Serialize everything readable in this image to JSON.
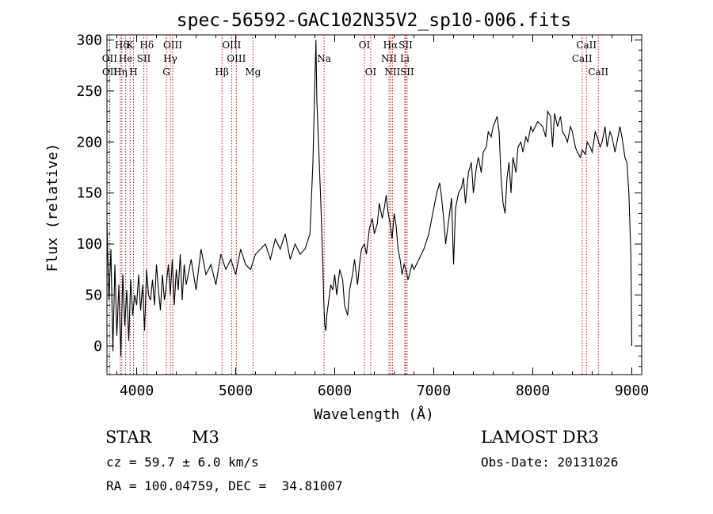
{
  "chart_data": {
    "type": "line",
    "title": "spec-56592-GAC102N35V2_sp10-006.fits",
    "xlabel": "Wavelength (Å)",
    "ylabel": "Flux (relative)",
    "xlim": [
      3700,
      9100
    ],
    "ylim": [
      -28,
      305
    ],
    "xticks": [
      4000,
      5000,
      6000,
      7000,
      8000,
      9000
    ],
    "yticks": [
      0,
      50,
      100,
      150,
      200,
      250,
      300
    ],
    "series": [
      {
        "name": "flux",
        "x": [
          3700,
          3720,
          3740,
          3760,
          3780,
          3800,
          3820,
          3840,
          3860,
          3880,
          3900,
          3920,
          3940,
          3960,
          3980,
          4000,
          4020,
          4040,
          4060,
          4080,
          4100,
          4120,
          4140,
          4160,
          4180,
          4200,
          4220,
          4240,
          4260,
          4280,
          4300,
          4320,
          4340,
          4360,
          4380,
          4400,
          4420,
          4440,
          4460,
          4480,
          4500,
          4550,
          4600,
          4650,
          4700,
          4750,
          4800,
          4850,
          4900,
          4950,
          5000,
          5050,
          5100,
          5150,
          5200,
          5250,
          5300,
          5350,
          5400,
          5450,
          5500,
          5550,
          5600,
          5650,
          5700,
          5750,
          5780,
          5800,
          5810,
          5820,
          5840,
          5860,
          5880,
          5890,
          5900,
          5910,
          5920,
          5940,
          5960,
          5980,
          6000,
          6020,
          6050,
          6080,
          6100,
          6130,
          6150,
          6180,
          6200,
          6230,
          6250,
          6270,
          6300,
          6320,
          6350,
          6380,
          6400,
          6430,
          6450,
          6480,
          6500,
          6520,
          6540,
          6560,
          6580,
          6600,
          6620,
          6640,
          6660,
          6680,
          6700,
          6720,
          6740,
          6760,
          6780,
          6800,
          6850,
          6900,
          6950,
          7000,
          7030,
          7060,
          7080,
          7100,
          7120,
          7140,
          7160,
          7180,
          7200,
          7220,
          7250,
          7280,
          7300,
          7320,
          7350,
          7380,
          7400,
          7430,
          7450,
          7480,
          7500,
          7530,
          7550,
          7580,
          7600,
          7620,
          7640,
          7660,
          7680,
          7700,
          7720,
          7740,
          7760,
          7780,
          7800,
          7830,
          7850,
          7880,
          7900,
          7930,
          7950,
          7980,
          8000,
          8050,
          8100,
          8130,
          8150,
          8180,
          8200,
          8220,
          8250,
          8280,
          8300,
          8330,
          8350,
          8380,
          8400,
          8430,
          8450,
          8480,
          8500,
          8530,
          8550,
          8580,
          8600,
          8630,
          8650,
          8680,
          8700,
          8730,
          8750,
          8780,
          8800,
          8830,
          8850,
          8880,
          8900,
          8930,
          8950,
          8970,
          8990,
          9000
        ],
        "values": [
          120,
          45,
          95,
          -5,
          80,
          10,
          60,
          -10,
          70,
          20,
          55,
          5,
          65,
          30,
          50,
          40,
          70,
          35,
          60,
          15,
          75,
          50,
          45,
          65,
          40,
          80,
          55,
          35,
          70,
          45,
          60,
          80,
          50,
          85,
          40,
          75,
          55,
          90,
          45,
          80,
          60,
          85,
          55,
          95,
          70,
          80,
          60,
          90,
          75,
          85,
          70,
          95,
          80,
          75,
          90,
          95,
          100,
          85,
          105,
          95,
          110,
          85,
          100,
          90,
          95,
          110,
          180,
          260,
          300,
          240,
          190,
          140,
          80,
          40,
          20,
          15,
          30,
          45,
          60,
          55,
          70,
          50,
          75,
          65,
          40,
          30,
          55,
          70,
          85,
          60,
          80,
          95,
          100,
          90,
          115,
          125,
          110,
          120,
          140,
          125,
          135,
          148,
          130,
          120,
          105,
          130,
          118,
          95,
          85,
          70,
          80,
          75,
          65,
          72,
          80,
          75,
          85,
          95,
          110,
          135,
          150,
          160,
          145,
          125,
          100,
          115,
          130,
          145,
          80,
          135,
          150,
          155,
          165,
          140,
          170,
          180,
          150,
          175,
          185,
          170,
          190,
          195,
          210,
          205,
          215,
          220,
          225,
          210,
          165,
          140,
          130,
          165,
          180,
          150,
          185,
          170,
          195,
          200,
          190,
          205,
          200,
          215,
          210,
          220,
          215,
          205,
          230,
          225,
          195,
          228,
          215,
          225,
          210,
          205,
          200,
          215,
          210,
          195,
          190,
          185,
          192,
          188,
          200,
          195,
          190,
          210,
          205,
          195,
          200,
          215,
          195,
          210,
          205,
          190,
          200,
          215,
          205,
          185,
          180,
          150,
          90,
          0
        ]
      }
    ],
    "line_markers": [
      {
        "label": "Hδ",
        "x": 3850,
        "row": 0
      },
      {
        "label": "K",
        "x": 3934,
        "row": 0
      },
      {
        "label": "Hδ",
        "x": 4102,
        "row": 0
      },
      {
        "label": "OIII",
        "x": 4364,
        "row": 0
      },
      {
        "label": "OIII",
        "x": 4959,
        "row": 0
      },
      {
        "label": "OI",
        "x": 6300,
        "row": 0
      },
      {
        "label": "Hα",
        "x": 6563,
        "row": 0
      },
      {
        "label": "SII",
        "x": 6716,
        "row": 0
      },
      {
        "label": "CaII",
        "x": 8542,
        "row": 0
      },
      {
        "label": "OII",
        "x": 3727,
        "row": 1
      },
      {
        "label": "He",
        "x": 3889,
        "row": 1
      },
      {
        "label": "SII",
        "x": 4072,
        "row": 1
      },
      {
        "label": "Hγ",
        "x": 4340,
        "row": 1
      },
      {
        "label": "OIII",
        "x": 5007,
        "row": 1
      },
      {
        "label": "Na",
        "x": 5893,
        "row": 1
      },
      {
        "label": "NII",
        "x": 6548,
        "row": 1
      },
      {
        "label": "Li",
        "x": 6708,
        "row": 1
      },
      {
        "label": "CaII",
        "x": 8498,
        "row": 1
      },
      {
        "label": "OII",
        "x": 3729,
        "row": 2
      },
      {
        "label": "Hη",
        "x": 3835,
        "row": 2
      },
      {
        "label": "H",
        "x": 3968,
        "row": 2
      },
      {
        "label": "G",
        "x": 4300,
        "row": 2
      },
      {
        "label": "Hβ",
        "x": 4861,
        "row": 2
      },
      {
        "label": "Mg",
        "x": 5175,
        "row": 2
      },
      {
        "label": "OI",
        "x": 6364,
        "row": 2
      },
      {
        "label": "NII",
        "x": 6583,
        "row": 2
      },
      {
        "label": "SII",
        "x": 6731,
        "row": 2
      },
      {
        "label": "CaII",
        "x": 8662,
        "row": 2
      }
    ]
  },
  "info": {
    "class": "STAR",
    "subclass": "M3",
    "survey": "LAMOST DR3",
    "cz": "cz = 59.7 ± 6.0 km/s",
    "obs_date": "Obs-Date: 20131026",
    "radec": "RA = 100.04759, DEC =  34.81007"
  }
}
